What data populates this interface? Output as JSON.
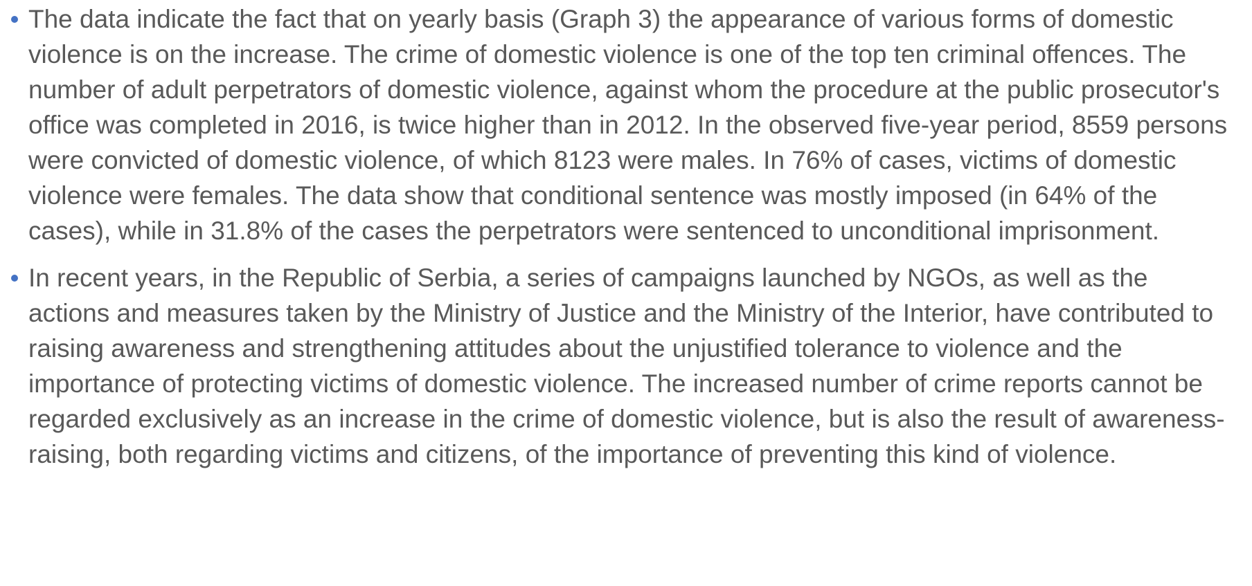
{
  "bullets": [
    "The data indicate the fact that on yearly basis (Graph 3) the appearance of various forms of domestic violence is on the increase. The crime of domestic violence is one of the top ten criminal offences. The number of adult perpetrators of domestic violence, against whom the procedure at the public prosecutor's office was completed in 2016, is twice higher than in 2012. In the observed five-year period, 8559 persons were convicted of domestic violence, of which 8123 were males. In 76% of cases, victims of domestic violence were females. The data show that conditional sentence was mostly imposed (in 64% of the cases), while in 31.8% of the cases the perpetrators were sentenced to unconditional imprisonment.",
    "In recent years, in the Republic of Serbia, a series of campaigns launched by NGOs, as well as the actions and measures taken by the Ministry of Justice and the Ministry of the Interior, have contributed to raising awareness and strengthening attitudes about the unjustified tolerance to violence and the importance of protecting victims of domestic violence. The increased number of crime reports cannot be regarded exclusively as an increase in the crime of domestic violence, but is also the result of awareness-raising, both regarding victims and citizens, of the importance of preventing this kind of violence."
  ]
}
